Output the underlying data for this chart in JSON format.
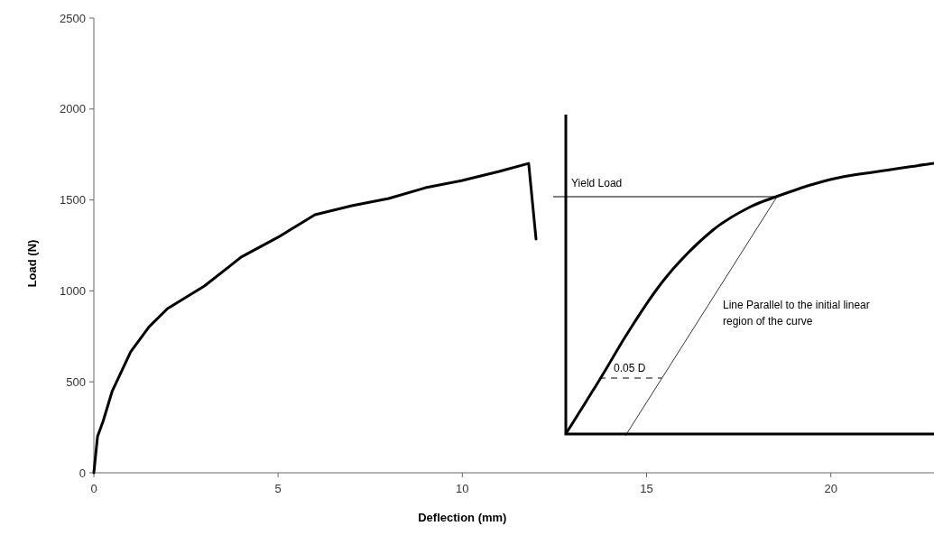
{
  "chart_data": {
    "type": "line",
    "xlabel": "Deflection (mm)",
    "ylabel": "Load (N)",
    "x": [
      0,
      0.1,
      0.25,
      0.5,
      1,
      1.5,
      2,
      3,
      4,
      5,
      6,
      7,
      8,
      9,
      10,
      11,
      11.8,
      12.0
    ],
    "series": [
      {
        "color": "#000000",
        "values": [
          0,
          200,
          283,
          450,
          665,
          803,
          903,
          1027,
          1186,
          1295,
          1419,
          1468,
          1508,
          1567,
          1607,
          1657,
          1701,
          1285
        ]
      }
    ],
    "xlim": [
      0,
      22.8
    ],
    "xticks": [
      0,
      5,
      10,
      15,
      20
    ],
    "ylim": [
      0,
      2500
    ],
    "yticks": [
      0,
      500,
      1000,
      1500,
      2000,
      2500
    ],
    "grid": false,
    "marker": "none",
    "line_style": "solid",
    "annotations": [
      "Yield Load",
      "0.05 D",
      "Line Parallel to the initial linear region of the curve"
    ]
  }
}
